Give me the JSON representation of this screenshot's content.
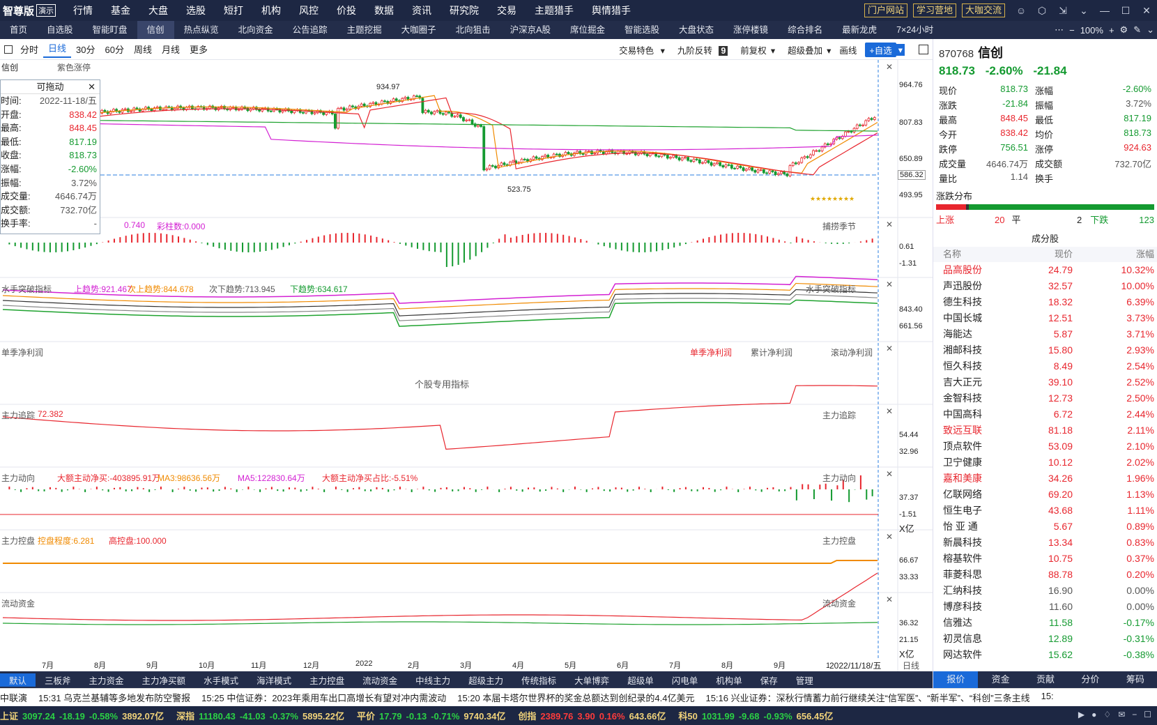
{
  "menubar": {
    "logo": "智尊版",
    "demo": "演示",
    "items": [
      {
        "label": "行情",
        "dot": false
      },
      {
        "label": "基金",
        "dot": true
      },
      {
        "label": "大盘",
        "dot": false
      },
      {
        "label": "选股",
        "dot": true
      },
      {
        "label": "短打",
        "dot": false
      },
      {
        "label": "机构",
        "dot": true
      },
      {
        "label": "风控",
        "dot": false
      },
      {
        "label": "价投",
        "dot": false
      },
      {
        "label": "数据",
        "dot": false
      },
      {
        "label": "资讯",
        "dot": false
      },
      {
        "label": "研究院",
        "dot": false
      },
      {
        "label": "交易",
        "dot": true
      },
      {
        "label": "主题猎手",
        "dot": false
      },
      {
        "label": "舆情猎手",
        "dot": true
      }
    ],
    "links": [
      "门户网站",
      "学习营地",
      "大咖交流"
    ]
  },
  "tabbar": {
    "items": [
      "首页",
      "自选股",
      "智能盯盘",
      "信创",
      "热点纵览",
      "北向资金",
      "公告追踪",
      "主题挖掘",
      "大咖圈子",
      "北向狙击",
      "沪深京A股",
      "席位掘金",
      "智能选股",
      "大盘状态",
      "涨停楼镜",
      "综合排名",
      "最新龙虎",
      "7×24小时"
    ],
    "active": "信创",
    "zoom": "100%"
  },
  "toolbar": {
    "periods": [
      "分时",
      "日线",
      "30分",
      "60分",
      "周线",
      "月线",
      "更多"
    ],
    "active": "日线",
    "right": [
      "交易特色",
      "九阶反转",
      "前复权",
      "超级叠加",
      "画线"
    ],
    "nine": "9",
    "fav": "+自选"
  },
  "chart": {
    "name_label": "信创",
    "purple": "紫色涨停",
    "axis_main": [
      "964.76",
      "807.83",
      "650.89",
      "586.32",
      "493.95"
    ],
    "high_mark": "934.97",
    "low_mark": "523.75",
    "months": [
      "7月",
      "8月",
      "9月",
      "10月",
      "11月",
      "12月",
      "2022",
      "2月",
      "3月",
      "4月",
      "5月",
      "6月",
      "7月",
      "8月",
      "9月",
      "10月"
    ],
    "date_cursor": "2022/11/18/五",
    "date_label2": "日线",
    "panels": {
      "p1": {
        "title": "捕捞季节",
        "vals": [
          "0.740",
          "彩柱数:0.000"
        ],
        "axis": [
          "0.61",
          "-1.31"
        ]
      },
      "p2": {
        "title": "水手突破指标",
        "items": [
          "上趋势:921.467",
          "次上趋势:844.678",
          "次下趋势:713.945",
          "下趋势:634.617"
        ],
        "axis": [
          "843.40",
          "661.56"
        ]
      },
      "p3": {
        "title": "单季净利润",
        "center": "个股专用指标",
        "tabs": [
          "单季净利润",
          "累计净利润",
          "滚动净利润"
        ]
      },
      "p4": {
        "title": "主力追踪",
        "val": "72.382",
        "axis": [
          "54.44",
          "32.96"
        ]
      },
      "p5": {
        "title": "主力动向",
        "items": [
          "大额主动净买:-403895.91万",
          "MA3:98636.56万",
          "MA5:122830.64万",
          "大额主动净买占比:-5.51%"
        ],
        "axis": [
          "37.37",
          "-1.51",
          "X亿"
        ]
      },
      "p6": {
        "title": "主力控盘",
        "items": [
          "控盘程度:6.281",
          "高控盘:100.000"
        ],
        "axis": [
          "66.67",
          "33.33"
        ]
      },
      "p7": {
        "title": "流动资金",
        "axis": [
          "36.32",
          "21.15",
          "X亿"
        ]
      }
    },
    "infobox": {
      "title": "可拖动",
      "rows": [
        {
          "k": "时间:",
          "v": "2022-11-18/五",
          "c": "gy"
        },
        {
          "k": "开盘:",
          "v": "838.42",
          "c": "up"
        },
        {
          "k": "最高:",
          "v": "848.45",
          "c": "up"
        },
        {
          "k": "最低:",
          "v": "817.19",
          "c": "dn"
        },
        {
          "k": "收盘:",
          "v": "818.73",
          "c": "dn"
        },
        {
          "k": "涨幅:",
          "v": "-2.60%",
          "c": "dn"
        },
        {
          "k": "振幅:",
          "v": "3.72%",
          "c": "gy"
        },
        {
          "k": "成交量:",
          "v": "4646.74万",
          "c": "gy"
        },
        {
          "k": "成交额:",
          "v": "732.70亿",
          "c": "gy"
        },
        {
          "k": "换手率:",
          "v": "-",
          "c": "gy"
        }
      ]
    }
  },
  "bottomtabs": {
    "items": [
      "默认",
      "三板斧",
      "主力资金",
      "主力净买额",
      "水手模式",
      "海洋模式",
      "主力控盘",
      "流动资金",
      "中线主力",
      "超级主力",
      "传统指标",
      "大单博弈",
      "超级单",
      "闪电单",
      "机构单",
      "保存",
      "管理"
    ],
    "active": "默认"
  },
  "news": [
    "中联演",
    "15:31 乌克兰基辅等多地发布防空警报",
    "15:25 中信证券：2023年乘用车出口高增长有望对冲内需波动",
    "15:20 本届卡塔尔世界杯的奖金总额达到创纪录的4.4亿美元",
    "15:16 兴业证券：深秋行情蓄力前行继续关注“信军医”、“新半军”、“科创”三条主线",
    "15:"
  ],
  "indices": [
    {
      "n": "上证",
      "v": "3097.24",
      "c": "-18.19",
      "p": "-0.58%",
      "a": "3892.07亿",
      "d": true
    },
    {
      "n": "深指",
      "v": "11180.43",
      "c": "-41.03",
      "p": "-0.37%",
      "a": "5895.22亿",
      "d": true
    },
    {
      "n": "平价",
      "v": "17.79",
      "c": "-0.13",
      "p": "-0.71%",
      "a": "9740.34亿",
      "d": true
    },
    {
      "n": "创指",
      "v": "2389.76",
      "c": "3.90",
      "p": "0.16%",
      "a": "643.66亿",
      "d": false
    },
    {
      "n": "科50",
      "v": "1031.99",
      "c": "-9.68",
      "p": "-0.93%",
      "a": "656.45亿",
      "d": true
    }
  ],
  "quote": {
    "code": "870768",
    "name": "信创",
    "price": "818.73",
    "change_pct": "-2.60%",
    "change": "-21.84",
    "grid": [
      [
        "现价",
        "818.73",
        "dn",
        "涨幅",
        "-2.60%",
        "dn"
      ],
      [
        "涨跌",
        "-21.84",
        "dn",
        "振幅",
        "3.72%",
        "gy"
      ],
      [
        "最高",
        "848.45",
        "up",
        "最低",
        "817.19",
        "dn"
      ],
      [
        "今开",
        "838.42",
        "up",
        "均价",
        "818.73",
        "dn"
      ],
      [
        "跌停",
        "756.51",
        "dn",
        "涨停",
        "924.63",
        "up"
      ],
      [
        "成交量",
        "4646.74万",
        "gy",
        "成交额",
        "732.70亿",
        "gy"
      ],
      [
        "量比",
        "1.14",
        "gy",
        "换手",
        "",
        "gy"
      ]
    ],
    "dist_title": "涨跌分布",
    "up_label": "上涨",
    "up_n": "20",
    "flat_label": "平",
    "flat_n": "2",
    "down_label": "下跌",
    "down_n": "123",
    "cft_title": "成分股",
    "cols": [
      "名称",
      "现价",
      "涨幅"
    ],
    "stocks": [
      {
        "n": "品高股份",
        "p": "24.79",
        "c": "10.32%",
        "hl": true
      },
      {
        "n": "声迅股份",
        "p": "32.57",
        "c": "10.00%",
        "hl": false
      },
      {
        "n": "德生科技",
        "p": "18.32",
        "c": "6.39%",
        "hl": false
      },
      {
        "n": "中国长城",
        "p": "12.51",
        "c": "3.73%",
        "hl": false
      },
      {
        "n": "海能达",
        "p": "5.87",
        "c": "3.71%",
        "hl": false
      },
      {
        "n": "湘邮科技",
        "p": "15.80",
        "c": "2.93%",
        "hl": false
      },
      {
        "n": "恒久科技",
        "p": "8.49",
        "c": "2.54%",
        "hl": false
      },
      {
        "n": "吉大正元",
        "p": "39.10",
        "c": "2.52%",
        "hl": false
      },
      {
        "n": "金智科技",
        "p": "12.73",
        "c": "2.50%",
        "hl": false
      },
      {
        "n": "中国高科",
        "p": "6.72",
        "c": "2.44%",
        "hl": false
      },
      {
        "n": "致远互联",
        "p": "81.18",
        "c": "2.11%",
        "hl": true
      },
      {
        "n": "顶点软件",
        "p": "53.09",
        "c": "2.10%",
        "hl": false
      },
      {
        "n": "卫宁健康",
        "p": "10.12",
        "c": "2.02%",
        "hl": false
      },
      {
        "n": "嘉和美康",
        "p": "34.26",
        "c": "1.96%",
        "hl": true
      },
      {
        "n": "亿联网络",
        "p": "69.20",
        "c": "1.13%",
        "hl": false
      },
      {
        "n": "恒生电子",
        "p": "43.68",
        "c": "1.11%",
        "hl": false
      },
      {
        "n": "怡 亚 通",
        "p": "5.67",
        "c": "0.89%",
        "hl": false
      },
      {
        "n": "新晨科技",
        "p": "13.34",
        "c": "0.83%",
        "hl": false
      },
      {
        "n": "榕基软件",
        "p": "10.75",
        "c": "0.37%",
        "hl": false
      },
      {
        "n": "菲菱科思",
        "p": "88.78",
        "c": "0.20%",
        "hl": false
      },
      {
        "n": "汇纳科技",
        "p": "16.90",
        "c": "0.00%",
        "hl": false
      },
      {
        "n": "博彦科技",
        "p": "11.60",
        "c": "0.00%",
        "hl": false
      },
      {
        "n": "信雅达",
        "p": "11.58",
        "c": "-0.17%",
        "hl": false
      },
      {
        "n": "初灵信息",
        "p": "12.89",
        "c": "-0.31%",
        "hl": false
      },
      {
        "n": "网达软件",
        "p": "15.62",
        "c": "-0.38%",
        "hl": false
      }
    ],
    "tabs": [
      "报价",
      "资金",
      "贡献",
      "分价",
      "筹码"
    ]
  }
}
